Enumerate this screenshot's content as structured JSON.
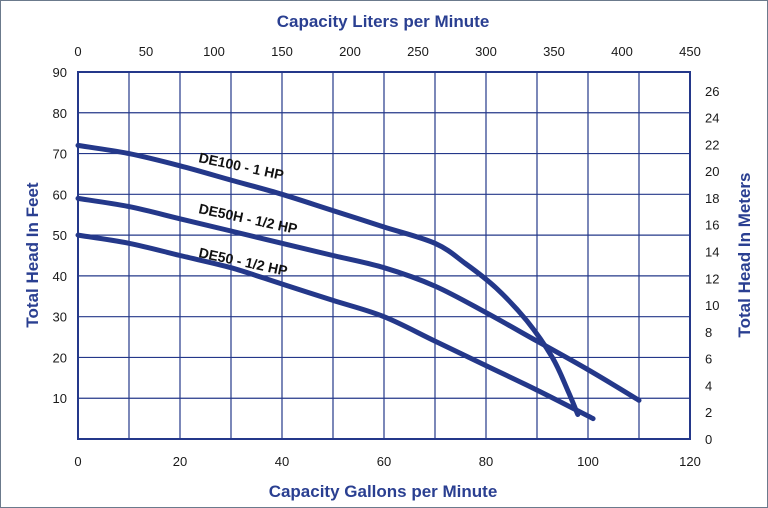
{
  "chart_data": {
    "type": "line",
    "title": "",
    "xlabel": "Capacity Gallons per Minute",
    "ylabel": "Total Head In Feet",
    "x2label": "Capacity Liters per Minute",
    "y2label": "Total Head In Meters",
    "xlim": [
      0,
      120
    ],
    "ylim": [
      0,
      90
    ],
    "x2lim": [
      0,
      450
    ],
    "y2lim": [
      0,
      27.4
    ],
    "x_ticks": [
      0,
      20,
      40,
      60,
      80,
      100,
      120
    ],
    "y_ticks": [
      10,
      20,
      30,
      40,
      50,
      60,
      70,
      80,
      90
    ],
    "x2_ticks": [
      0,
      50,
      100,
      150,
      200,
      250,
      300,
      350,
      400,
      450
    ],
    "y2_ticks": [
      0,
      2,
      4,
      6,
      8,
      10,
      12,
      14,
      16,
      18,
      20,
      22,
      24,
      26
    ],
    "grid": true,
    "series": [
      {
        "name": "DE100 - 1 HP",
        "x": [
          0,
          10,
          20,
          30,
          40,
          50,
          60,
          70,
          76,
          82,
          88,
          93,
          96,
          98
        ],
        "y": [
          72,
          70,
          67,
          63.5,
          60,
          56,
          52,
          48,
          43,
          37,
          29,
          20,
          12,
          6
        ]
      },
      {
        "name": "DE50H - 1/2 HP",
        "x": [
          0,
          10,
          20,
          30,
          40,
          50,
          60,
          70,
          80,
          90,
          100,
          110
        ],
        "y": [
          59,
          57,
          54,
          51,
          48,
          45,
          42,
          37.5,
          31,
          24,
          17,
          9.5
        ]
      },
      {
        "name": "DE50 - 1/2 HP",
        "x": [
          0,
          10,
          20,
          30,
          40,
          50,
          60,
          70,
          80,
          90,
          101
        ],
        "y": [
          50,
          48,
          45,
          42,
          38,
          34,
          30,
          24,
          18,
          12,
          5
        ]
      }
    ],
    "colors": {
      "curve": "#24388a",
      "grid": "#24388a",
      "axis_title": "#2a3f91"
    }
  }
}
